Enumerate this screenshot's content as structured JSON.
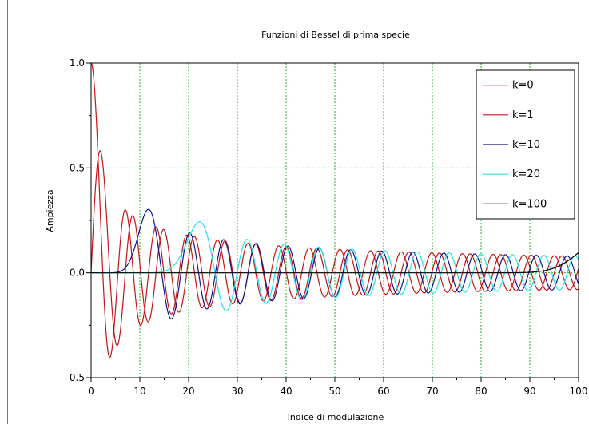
{
  "chart_data": {
    "type": "line",
    "title": "Funzioni di Bessel di prima specie",
    "xlabel": "Indice di modulazione",
    "ylabel": "Ampiezza",
    "xlim": [
      0,
      100
    ],
    "ylim": [
      -0.5,
      1.0
    ],
    "x_ticks": [
      "0",
      "10",
      "20",
      "30",
      "40",
      "50",
      "60",
      "70",
      "80",
      "90",
      "100"
    ],
    "y_ticks": [
      "-0.5",
      "0.0",
      "0.5",
      "1.0"
    ],
    "grid": true,
    "legend_position": "top-right",
    "series_function": "Bessel function of the first kind J_k(x)",
    "series": [
      {
        "name": "k=0",
        "order": 0,
        "color": "#c81414"
      },
      {
        "name": "k=1",
        "order": 1,
        "color": "#c81414"
      },
      {
        "name": "k=10",
        "order": 10,
        "color": "#12129a"
      },
      {
        "name": "k=20",
        "order": 20,
        "color": "#1ee6e6"
      },
      {
        "name": "k=100",
        "order": 100,
        "color": "#000000"
      }
    ]
  },
  "colors": {
    "grid": "#22b022",
    "axis": "#000000",
    "background": "#ffffff"
  }
}
